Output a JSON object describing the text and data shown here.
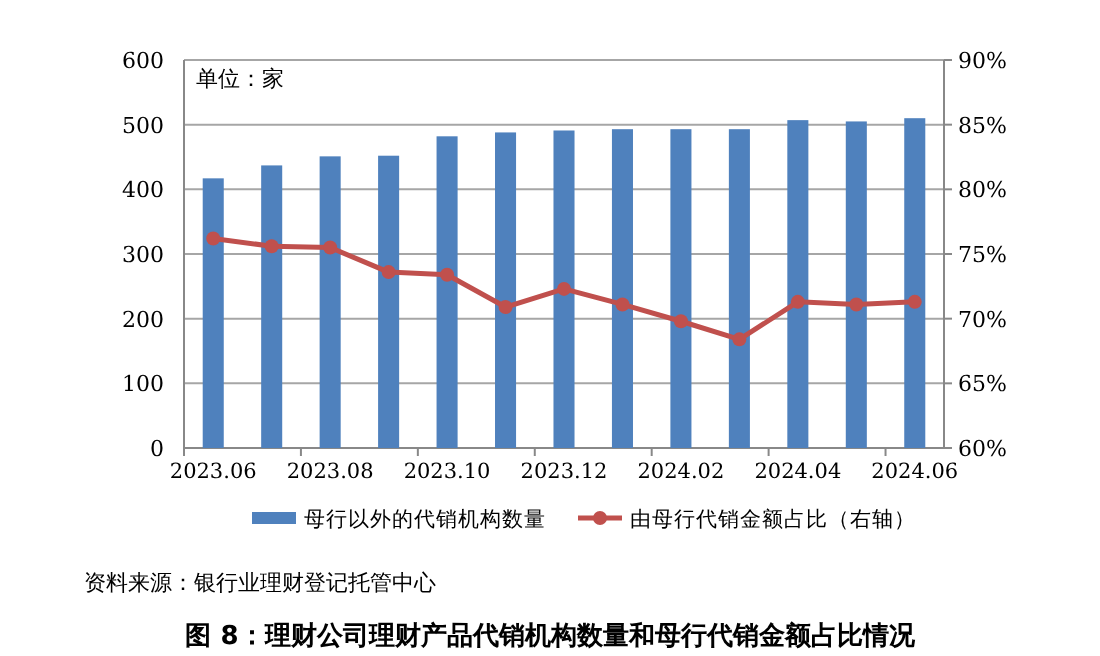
{
  "chart_data": {
    "type": "bar",
    "title": "图 8：理财公司理财产品代销机构数量和母行代销金额占比情况",
    "annotations": [
      "单位：家",
      "资料来源：银行业理财登记托管中心"
    ],
    "categories": [
      "2023.06",
      null,
      "2023.08",
      null,
      "2023.10",
      null,
      "2023.12",
      null,
      "2024.02",
      null,
      "2024.04",
      null,
      "2024.06"
    ],
    "series": [
      {
        "name": "母行以外的代销机构数量",
        "color": "#4f81bd",
        "values": [
          417,
          437,
          451,
          452,
          482,
          488,
          491,
          493,
          493,
          493,
          507,
          505,
          510
        ]
      },
      {
        "name": "由母行代销金额占比（右轴）",
        "type": "line",
        "axis": "y2",
        "color": "#c0504d",
        "marker": "circle",
        "values": [
          76.2,
          75.6,
          75.5,
          73.6,
          73.4,
          70.9,
          72.3,
          71.1,
          69.8,
          68.4,
          71.3,
          71.1,
          71.3
        ]
      }
    ],
    "ylim": [
      0,
      600
    ],
    "yticks": [
      0,
      100,
      200,
      300,
      400,
      500,
      600
    ],
    "y2lim": [
      60,
      90
    ],
    "y2ticks": [
      {
        "value": 60,
        "label": "60%"
      },
      {
        "value": 65,
        "label": "65%"
      },
      {
        "value": 70,
        "label": "70%"
      },
      {
        "value": 75,
        "label": "75%"
      },
      {
        "value": 80,
        "label": "80%"
      },
      {
        "value": 85,
        "label": "85%"
      },
      {
        "value": 90,
        "label": "90%"
      }
    ],
    "grid": "y",
    "legend": "bottom"
  }
}
